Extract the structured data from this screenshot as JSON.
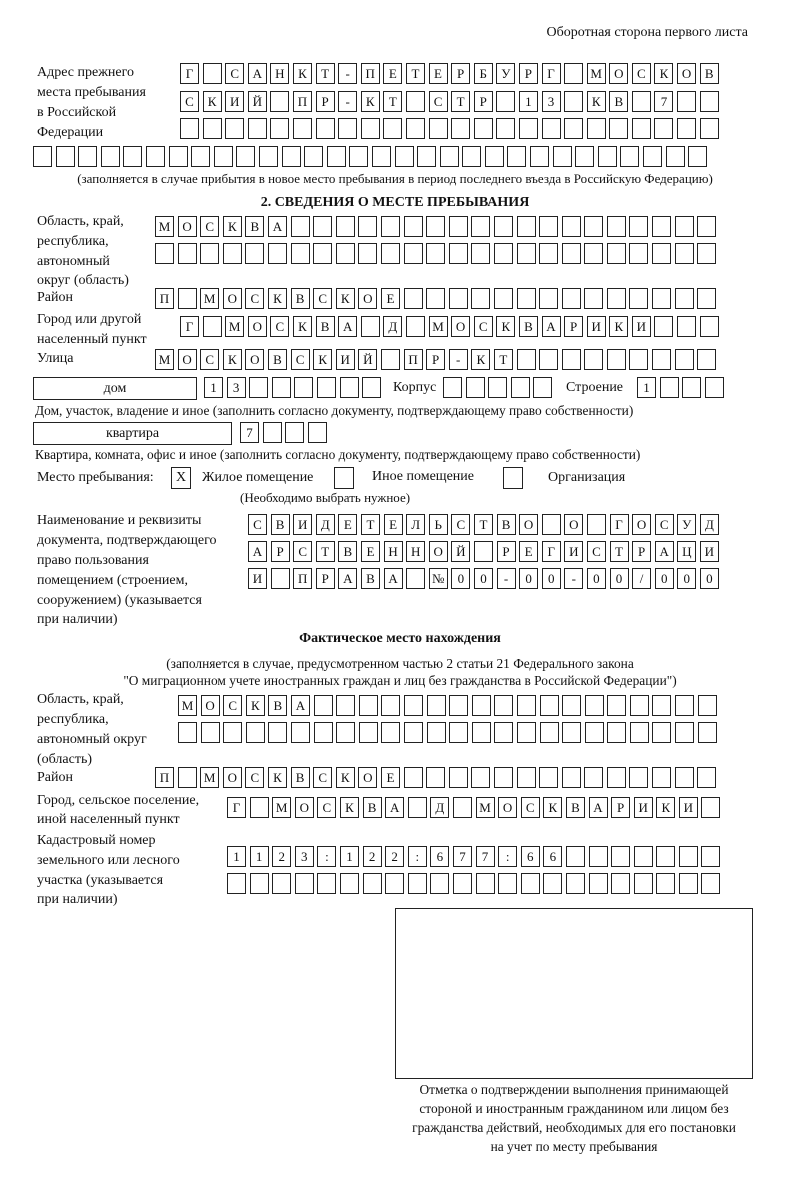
{
  "header": "Оборотная сторона первого листа",
  "prev_address": {
    "label": [
      "Адрес прежнего",
      "места пребывания",
      "в Российской",
      "Федерации"
    ],
    "rows": [
      [
        "Г",
        "",
        "С",
        "А",
        "Н",
        "К",
        "Т",
        "-",
        "П",
        "Е",
        "Т",
        "Е",
        "Р",
        "Б",
        "У",
        "Р",
        "Г",
        "",
        "М",
        "О",
        "С",
        "К",
        "О",
        "В"
      ],
      [
        "С",
        "К",
        "И",
        "Й",
        "",
        "П",
        "Р",
        "-",
        "К",
        "Т",
        "",
        "С",
        "Т",
        "Р",
        "",
        "1",
        "3",
        "",
        "К",
        "В",
        "",
        "7",
        "",
        ""
      ],
      [
        "",
        "",
        "",
        "",
        "",
        "",
        "",
        "",
        "",
        "",
        "",
        "",
        "",
        "",
        "",
        "",
        "",
        "",
        "",
        "",
        "",
        "",
        "",
        ""
      ],
      [
        "",
        "",
        "",
        "",
        "",
        "",
        "",
        "",
        "",
        "",
        "",
        "",
        "",
        "",
        "",
        "",
        "",
        "",
        "",
        "",
        "",
        "",
        "",
        "",
        "",
        "",
        "",
        "",
        "",
        ""
      ]
    ],
    "note": "(заполняется в случае прибытия в новое место пребывания в период последнего въезда в Российскую Федерацию)"
  },
  "section2": {
    "title": "2. СВЕДЕНИЯ О МЕСТЕ ПРЕБЫВАНИЯ",
    "region_label": [
      "Область, край,",
      "республика,",
      "автономный",
      "округ (область)"
    ],
    "region_rows": [
      [
        "М",
        "О",
        "С",
        "К",
        "В",
        "А",
        "",
        "",
        "",
        "",
        "",
        "",
        "",
        "",
        "",
        "",
        "",
        "",
        "",
        "",
        "",
        "",
        "",
        "",
        ""
      ],
      [
        "",
        "",
        "",
        "",
        "",
        "",
        "",
        "",
        "",
        "",
        "",
        "",
        "",
        "",
        "",
        "",
        "",
        "",
        "",
        "",
        "",
        "",
        "",
        "",
        ""
      ]
    ],
    "district_label": "Район",
    "district": [
      "П",
      "",
      "М",
      "О",
      "С",
      "К",
      "В",
      "С",
      "К",
      "О",
      "Е",
      "",
      "",
      "",
      "",
      "",
      "",
      "",
      "",
      "",
      "",
      "",
      "",
      "",
      ""
    ],
    "city_label": [
      "Город или другой",
      "населенный пункт"
    ],
    "city": [
      "Г",
      "",
      "М",
      "О",
      "С",
      "К",
      "В",
      "А",
      "",
      "Д",
      "",
      "М",
      "О",
      "С",
      "К",
      "В",
      "А",
      "Р",
      "И",
      "К",
      "И",
      "",
      "",
      ""
    ],
    "street_label": "Улица",
    "street": [
      "М",
      "О",
      "С",
      "К",
      "О",
      "В",
      "С",
      "К",
      "И",
      "Й",
      "",
      "П",
      "Р",
      "-",
      "К",
      "Т",
      "",
      "",
      "",
      "",
      "",
      "",
      "",
      "",
      ""
    ],
    "house_type": "дом",
    "house": [
      "1",
      "3",
      "",
      "",
      "",
      "",
      "",
      ""
    ],
    "korpus_label": "Корпус",
    "korpus": [
      "",
      "",
      "",
      "",
      ""
    ],
    "building_label": "Строение",
    "building": [
      "1",
      "",
      "",
      ""
    ],
    "house_note": "Дом, участок, владение и иное (заполнить согласно документу, подтверждающему право собственности)",
    "flat_type": "квартира",
    "flat": [
      "7",
      "",
      "",
      ""
    ],
    "flat_note": "Квартира, комната, офис и иное (заполнить согласно документу, подтверждающему право собственности)",
    "place_label": "Место пребывания:",
    "place_options": [
      {
        "label": "Жилое помещение",
        "mark": "X"
      },
      {
        "label": "Иное помещение",
        "mark": ""
      },
      {
        "label": "Организация",
        "mark": ""
      }
    ],
    "place_note": "(Необходимо выбрать нужное)",
    "doc_label": [
      "Наименование и реквизиты",
      "документа, подтверждающего",
      "право пользования",
      "помещением (строением,",
      "сооружением) (указывается",
      "при наличии)"
    ],
    "doc_rows": [
      [
        "С",
        "В",
        "И",
        "Д",
        "Е",
        "Т",
        "Е",
        "Л",
        "Ь",
        "С",
        "Т",
        "В",
        "О",
        "",
        "О",
        "",
        "Г",
        "О",
        "С",
        "У",
        "Д"
      ],
      [
        "А",
        "Р",
        "С",
        "Т",
        "В",
        "Е",
        "Н",
        "Н",
        "О",
        "Й",
        "",
        "Р",
        "Е",
        "Г",
        "И",
        "С",
        "Т",
        "Р",
        "А",
        "Ц",
        "И"
      ],
      [
        "И",
        "",
        "П",
        "Р",
        "А",
        "В",
        "А",
        "",
        "№",
        "0",
        "0",
        "-",
        "0",
        "0",
        "-",
        "0",
        "0",
        "/",
        "0",
        "0",
        "0"
      ]
    ]
  },
  "actual": {
    "title": "Фактическое место нахождения",
    "note": [
      "(заполняется в случае, предусмотренном частью 2 статьи 21 Федерального закона",
      "\"О миграционном учете иностранных граждан и лиц без гражданства в Российской Федерации\")"
    ],
    "region_label": [
      "Область, край,",
      "республика,",
      "автономный округ",
      "(область)"
    ],
    "region_rows": [
      [
        "М",
        "О",
        "С",
        "К",
        "В",
        "А",
        "",
        "",
        "",
        "",
        "",
        "",
        "",
        "",
        "",
        "",
        "",
        "",
        "",
        "",
        "",
        "",
        "",
        ""
      ],
      [
        "",
        "",
        "",
        "",
        "",
        "",
        "",
        "",
        "",
        "",
        "",
        "",
        "",
        "",
        "",
        "",
        "",
        "",
        "",
        "",
        "",
        "",
        "",
        ""
      ]
    ],
    "district_label": "Район",
    "district": [
      "П",
      "",
      "М",
      "О",
      "С",
      "К",
      "В",
      "С",
      "К",
      "О",
      "Е",
      "",
      "",
      "",
      "",
      "",
      "",
      "",
      "",
      "",
      "",
      "",
      "",
      "",
      ""
    ],
    "city_label": [
      "Город, сельское поселение,",
      "иной населенный пункт"
    ],
    "city": [
      "Г",
      "",
      "М",
      "О",
      "С",
      "К",
      "В",
      "А",
      "",
      "Д",
      "",
      "М",
      "О",
      "С",
      "К",
      "В",
      "А",
      "Р",
      "И",
      "К",
      "И",
      ""
    ],
    "cadastre_label": [
      "Кадастровый номер",
      "земельного или лесного",
      "участка (указывается",
      "при наличии)"
    ],
    "cadastre_rows": [
      [
        "1",
        "1",
        "2",
        "3",
        ":",
        "1",
        "2",
        "2",
        ":",
        "6",
        "7",
        "7",
        ":",
        "6",
        "6",
        "",
        "",
        "",
        "",
        "",
        "",
        ""
      ],
      [
        "",
        "",
        "",
        "",
        "",
        "",
        "",
        "",
        "",
        "",
        "",
        "",
        "",
        "",
        "",
        "",
        "",
        "",
        "",
        "",
        "",
        ""
      ]
    ],
    "stamp_caption": [
      "Отметка о подтверждении выполнения принимающей",
      "стороной и иностранным гражданином или лицом без",
      "гражданства действий, необходимых для его постановки",
      "на учет по месту пребывания"
    ]
  }
}
